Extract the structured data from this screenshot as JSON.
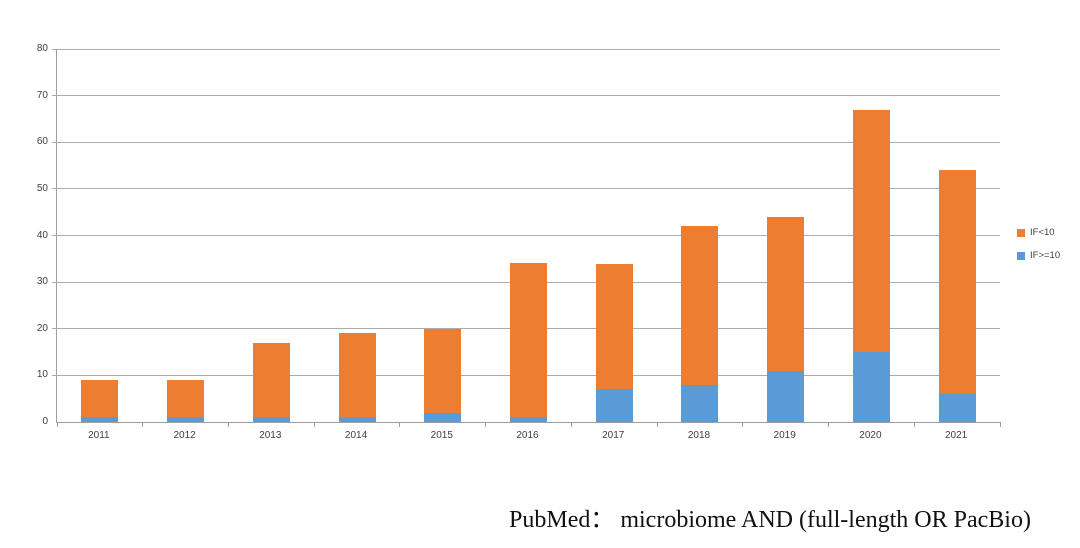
{
  "caption": {
    "text": "PubMed： microbiome AND (full-length OR PacBio)"
  },
  "chart_data": {
    "type": "bar",
    "stacked": true,
    "title": "",
    "xlabel": "",
    "ylabel": "",
    "categories": [
      "2011",
      "2012",
      "2013",
      "2014",
      "2015",
      "2016",
      "2017",
      "2018",
      "2019",
      "2020",
      "2021"
    ],
    "series": [
      {
        "name": "IF<10",
        "color": "#ED7D31",
        "values": [
          8,
          8,
          16,
          18,
          18,
          33,
          27,
          34,
          33,
          52,
          48
        ]
      },
      {
        "name": "IF>=10",
        "color": "#5B9BD5",
        "values": [
          1,
          1,
          1,
          1,
          2,
          1,
          7,
          8,
          11,
          15,
          6
        ]
      }
    ],
    "stack_bottom_to_top": [
      "IF>=10",
      "IF<10"
    ],
    "totals": [
      9,
      9,
      17,
      19,
      20,
      34,
      34,
      42,
      44,
      67,
      54
    ],
    "ylim": [
      0,
      80
    ],
    "ytick_step": 10,
    "yticks": [
      0,
      10,
      20,
      30,
      40,
      50,
      60,
      70,
      80
    ],
    "grid": true,
    "legend_position": "right",
    "legend": [
      "IF<10",
      "IF>=10"
    ]
  },
  "colors": {
    "series_orange": "#ED7D31",
    "series_blue": "#5B9BD5",
    "gridline": "#ABABAB",
    "axis": "#9E9E9E",
    "tick_label": "#404040",
    "background": "#FFFFFF"
  }
}
